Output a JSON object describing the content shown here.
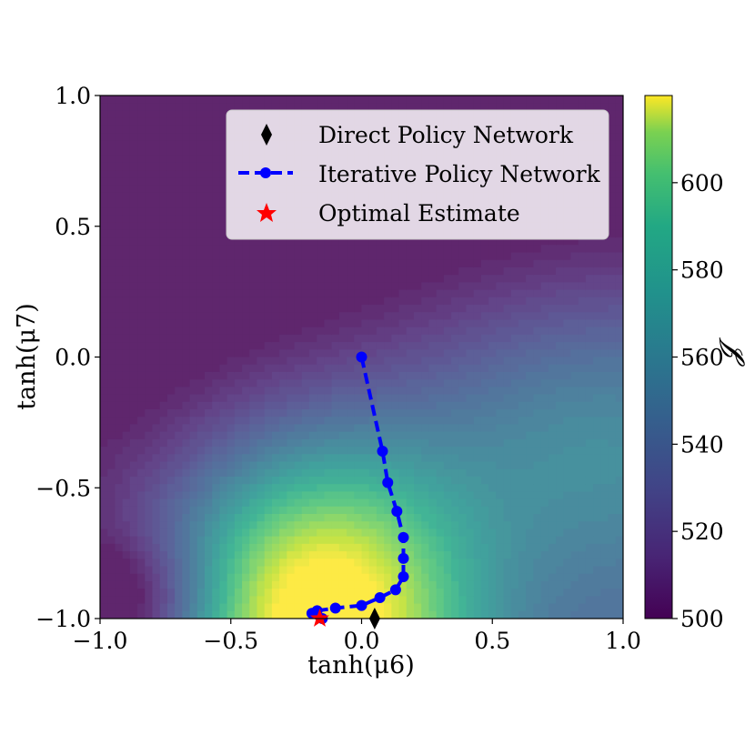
{
  "chart_data": {
    "type": "contour",
    "title": "",
    "xlabel": "tanh(μ6)",
    "ylabel": "tanh(μ7)",
    "xlim": [
      -1.0,
      1.0
    ],
    "ylim": [
      -1.0,
      1.0
    ],
    "x_ticks": [
      "−1.0",
      "−0.5",
      "0.0",
      "0.5",
      "1.0"
    ],
    "x_tick_values": [
      -1.0,
      -0.5,
      0.0,
      0.5,
      1.0
    ],
    "y_ticks": [
      "−1.0",
      "−0.5",
      "0.0",
      "0.5",
      "1.0"
    ],
    "y_tick_values": [
      -1.0,
      -0.5,
      0.0,
      0.5,
      1.0
    ],
    "colorbar": {
      "label": "𝓙",
      "range": [
        500,
        620
      ],
      "ticks": [
        "500",
        "520",
        "540",
        "560",
        "580",
        "600"
      ],
      "tick_values": [
        500,
        520,
        540,
        560,
        580,
        600
      ],
      "colormap": "viridis"
    },
    "field": {
      "description_of_values": "J maximum near the lower boundary at tanh(μ6)≈-0.15",
      "max_value": 620,
      "min_value": 500,
      "peak_x": -0.16,
      "peak_y": -1.0
    },
    "grid": false,
    "legend": {
      "placement": "top-right",
      "entries": [
        {
          "label": "Direct Policy Network",
          "marker": "diamond",
          "color": "#000000"
        },
        {
          "label": "Iterative Policy Network",
          "marker": "circle-dashed-line",
          "color": "#0000ff"
        },
        {
          "label": "Optimal Estimate",
          "marker": "star",
          "color": "#ff0000"
        }
      ]
    },
    "series": [
      {
        "name": "Iterative Policy Network",
        "color": "#0000ff",
        "points": [
          {
            "x": 0.0,
            "y": 0.0
          },
          {
            "x": 0.08,
            "y": -0.36
          },
          {
            "x": 0.1,
            "y": -0.48
          },
          {
            "x": 0.135,
            "y": -0.59
          },
          {
            "x": 0.16,
            "y": -0.69
          },
          {
            "x": 0.16,
            "y": -0.77
          },
          {
            "x": 0.16,
            "y": -0.84
          },
          {
            "x": 0.13,
            "y": -0.89
          },
          {
            "x": 0.07,
            "y": -0.92
          },
          {
            "x": 0.0,
            "y": -0.95
          },
          {
            "x": -0.1,
            "y": -0.96
          },
          {
            "x": -0.17,
            "y": -0.97
          },
          {
            "x": -0.19,
            "y": -0.98
          },
          {
            "x": -0.15,
            "y": -1.0
          }
        ]
      },
      {
        "name": "Direct Policy Network",
        "color": "#000000",
        "points": [
          {
            "x": 0.05,
            "y": -1.0
          }
        ]
      },
      {
        "name": "Optimal Estimate",
        "color": "#ff0000",
        "points": [
          {
            "x": -0.16,
            "y": -1.0
          }
        ]
      }
    ]
  }
}
